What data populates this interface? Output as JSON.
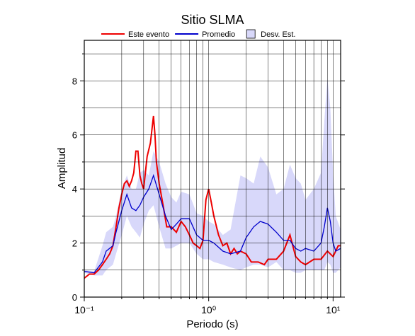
{
  "chart_data": {
    "type": "line",
    "title": "Sitio SLMA",
    "xlabel": "Periodo (s)",
    "ylabel": "Amplitud",
    "xscale": "log",
    "xlim": [
      0.1,
      11.5
    ],
    "ylim": [
      0,
      9.5
    ],
    "xticks": [
      {
        "value": 0.1,
        "label": "10⁻¹"
      },
      {
        "value": 1,
        "label": "10⁰"
      },
      {
        "value": 10,
        "label": "10¹"
      }
    ],
    "xminor": [
      0.2,
      0.3,
      0.4,
      0.5,
      0.6,
      0.7,
      0.8,
      0.9,
      2,
      3,
      4,
      5,
      6,
      7,
      8,
      9
    ],
    "yticks": [
      0,
      2,
      4,
      6,
      8
    ],
    "yminor": [
      1,
      3,
      5,
      7,
      9
    ],
    "grid": true,
    "band": {
      "name": "Desv. Est.",
      "color": "#d8d8fa",
      "x": [
        0.1,
        0.12,
        0.14,
        0.15,
        0.17,
        0.18,
        0.2,
        0.22,
        0.24,
        0.26,
        0.28,
        0.3,
        0.33,
        0.36,
        0.4,
        0.45,
        0.5,
        0.55,
        0.6,
        0.7,
        0.8,
        0.9,
        1.0,
        1.1,
        1.3,
        1.5,
        1.8,
        2.0,
        2.3,
        2.6,
        3.0,
        3.5,
        4.0,
        4.5,
        5,
        5.5,
        6,
        7,
        8,
        8.5,
        9,
        9.5,
        10,
        10.5,
        11.5
      ],
      "upper": [
        1.0,
        0.95,
        1.9,
        2.4,
        2.6,
        3.0,
        4.0,
        4.5,
        4.0,
        4.0,
        4.6,
        4.7,
        4.5,
        5.4,
        5.0,
        4.2,
        3.7,
        3.5,
        3.9,
        3.8,
        3.1,
        3.0,
        2.8,
        2.7,
        2.3,
        2.5,
        4.5,
        4.4,
        4.2,
        5.2,
        4.8,
        3.8,
        4.0,
        4.9,
        4.4,
        4.2,
        3.6,
        4.0,
        4.6,
        6.5,
        8.1,
        7.0,
        4.6,
        3.0,
        2.5
      ],
      "lower": [
        0.9,
        0.8,
        0.8,
        1.0,
        1.2,
        1.6,
        2.3,
        3.0,
        2.6,
        2.4,
        2.2,
        2.7,
        3.2,
        3.4,
        2.6,
        1.8,
        1.8,
        1.9,
        2.0,
        2.0,
        1.6,
        1.4,
        1.4,
        1.3,
        1.2,
        1.1,
        1.0,
        1.1,
        1.2,
        1.2,
        1.1,
        1.3,
        1.0,
        1.0,
        0.9,
        0.9,
        1.0,
        1.0,
        1.0,
        1.0,
        1.3,
        1.2,
        0.9,
        0.9,
        1.1
      ]
    },
    "series": [
      {
        "name": "Este evento",
        "color": "#ee0000",
        "x": [
          0.1,
          0.11,
          0.12,
          0.13,
          0.14,
          0.15,
          0.16,
          0.17,
          0.18,
          0.19,
          0.2,
          0.21,
          0.22,
          0.23,
          0.24,
          0.25,
          0.26,
          0.27,
          0.28,
          0.29,
          0.3,
          0.32,
          0.34,
          0.36,
          0.37,
          0.38,
          0.4,
          0.43,
          0.46,
          0.5,
          0.55,
          0.6,
          0.65,
          0.7,
          0.75,
          0.8,
          0.85,
          0.9,
          0.95,
          1.0,
          1.05,
          1.1,
          1.2,
          1.3,
          1.4,
          1.5,
          1.6,
          1.7,
          1.8,
          2.0,
          2.2,
          2.5,
          2.8,
          3.0,
          3.5,
          4.0,
          4.5,
          5.0,
          5.5,
          6,
          7,
          8,
          9,
          10,
          11,
          11.5
        ],
        "values": [
          0.7,
          0.85,
          0.85,
          1.0,
          1.2,
          1.4,
          1.6,
          1.9,
          2.6,
          3.3,
          3.8,
          4.2,
          4.3,
          4.1,
          4.3,
          4.6,
          5.4,
          5.4,
          4.5,
          4.2,
          4.0,
          5.2,
          5.7,
          6.7,
          6.0,
          5.0,
          4.2,
          3.4,
          2.6,
          2.6,
          2.4,
          2.8,
          2.6,
          2.3,
          2.0,
          1.9,
          1.8,
          2.1,
          3.6,
          4.0,
          3.5,
          3.0,
          2.3,
          1.9,
          2.0,
          1.6,
          1.8,
          1.6,
          1.7,
          1.6,
          1.3,
          1.3,
          1.2,
          1.4,
          1.4,
          1.7,
          2.3,
          1.5,
          1.3,
          1.2,
          1.4,
          1.4,
          1.7,
          1.5,
          1.9,
          1.9
        ]
      },
      {
        "name": "Promedio",
        "color": "#0000cc",
        "x": [
          0.1,
          0.12,
          0.14,
          0.15,
          0.17,
          0.18,
          0.2,
          0.22,
          0.24,
          0.26,
          0.28,
          0.3,
          0.33,
          0.36,
          0.4,
          0.45,
          0.5,
          0.55,
          0.6,
          0.7,
          0.8,
          0.9,
          1.0,
          1.1,
          1.3,
          1.5,
          1.8,
          2.0,
          2.3,
          2.6,
          3.0,
          3.5,
          4.0,
          4.5,
          5,
          5.5,
          6,
          7,
          8,
          8.5,
          9,
          9.5,
          10,
          10.5,
          11.5
        ],
        "values": [
          0.95,
          0.9,
          1.3,
          1.7,
          1.9,
          2.4,
          3.2,
          3.8,
          3.3,
          3.2,
          3.4,
          3.7,
          4.0,
          4.5,
          3.8,
          3.0,
          2.5,
          2.7,
          2.9,
          2.9,
          2.3,
          2.1,
          2.1,
          2.0,
          1.7,
          1.6,
          1.7,
          2.2,
          2.6,
          2.8,
          2.7,
          2.4,
          2.1,
          2.1,
          1.8,
          1.7,
          1.8,
          1.7,
          2.0,
          2.6,
          3.3,
          2.8,
          2.0,
          1.7,
          1.8
        ]
      }
    ]
  }
}
